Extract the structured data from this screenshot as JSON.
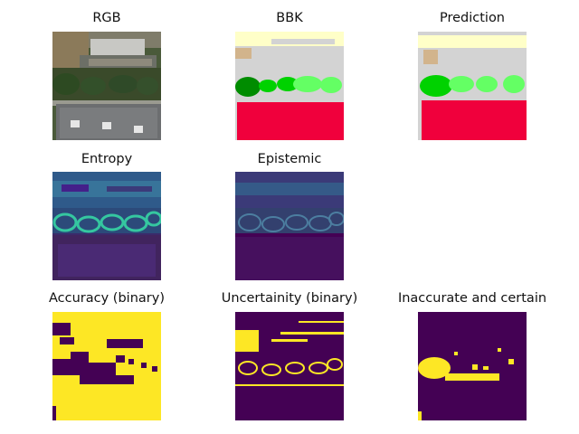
{
  "panels": {
    "rgb": {
      "title": "RGB"
    },
    "bbk": {
      "title": "BBK"
    },
    "prediction": {
      "title": "Prediction"
    },
    "entropy": {
      "title": "Entropy"
    },
    "epistemic": {
      "title": "Epistemic"
    },
    "accuracy": {
      "title": "Accuracy (binary)"
    },
    "uncertainty": {
      "title": "Uncertainity (binary)"
    },
    "inaccurate": {
      "title": "Inaccurate and certain"
    }
  },
  "colors": {
    "viridis_dark": "#440154",
    "viridis_yellow": "#fde725",
    "viridis_teal": "#21918c",
    "viridis_blue": "#3b528b",
    "class_road": "#d3d3d3",
    "class_building": "#f0003c",
    "class_tree": "#008c00",
    "class_low_veg": "#00d200",
    "class_grass": "#64ff64",
    "class_bare": "#ffffc8",
    "class_soil": "#d2b48c"
  }
}
